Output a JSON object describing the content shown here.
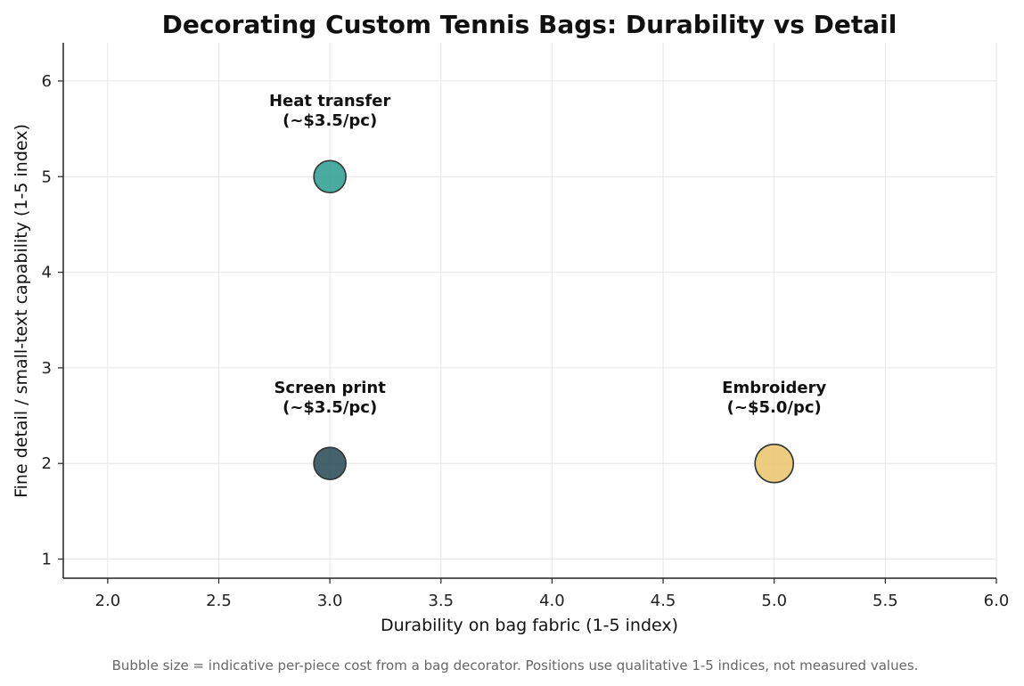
{
  "chart_data": {
    "type": "scatter",
    "title": "Decorating Custom Tennis Bags: Durability vs Detail",
    "xlabel": "Durability on bag fabric (1-5 index)",
    "ylabel": "Fine detail / small-text capability (1-5 index)",
    "xlim": [
      1.8,
      6.0
    ],
    "ylim": [
      0.8,
      6.4
    ],
    "xticks": [
      "2.0",
      "2.5",
      "3.0",
      "3.5",
      "4.0",
      "4.5",
      "5.0",
      "5.5",
      "6.0"
    ],
    "yticks": [
      "1",
      "2",
      "3",
      "4",
      "5",
      "6"
    ],
    "grid": true,
    "points": [
      {
        "label": "Heat transfer",
        "cost_label": "(~$3.5/pc)",
        "x": 3,
        "y": 5,
        "cost": 3.5,
        "color": "#2a9d8f"
      },
      {
        "label": "Screen print",
        "cost_label": "(~$3.5/pc)",
        "x": 3,
        "y": 2,
        "cost": 3.5,
        "color": "#264653"
      },
      {
        "label": "Embroidery",
        "cost_label": "(~$5.0/pc)",
        "x": 5,
        "y": 2,
        "cost": 5.0,
        "color": "#e9c46a"
      }
    ],
    "footnote": "Bubble size = indicative per-piece cost from a bag decorator. Positions use qualitative 1-5 indices, not measured values."
  }
}
